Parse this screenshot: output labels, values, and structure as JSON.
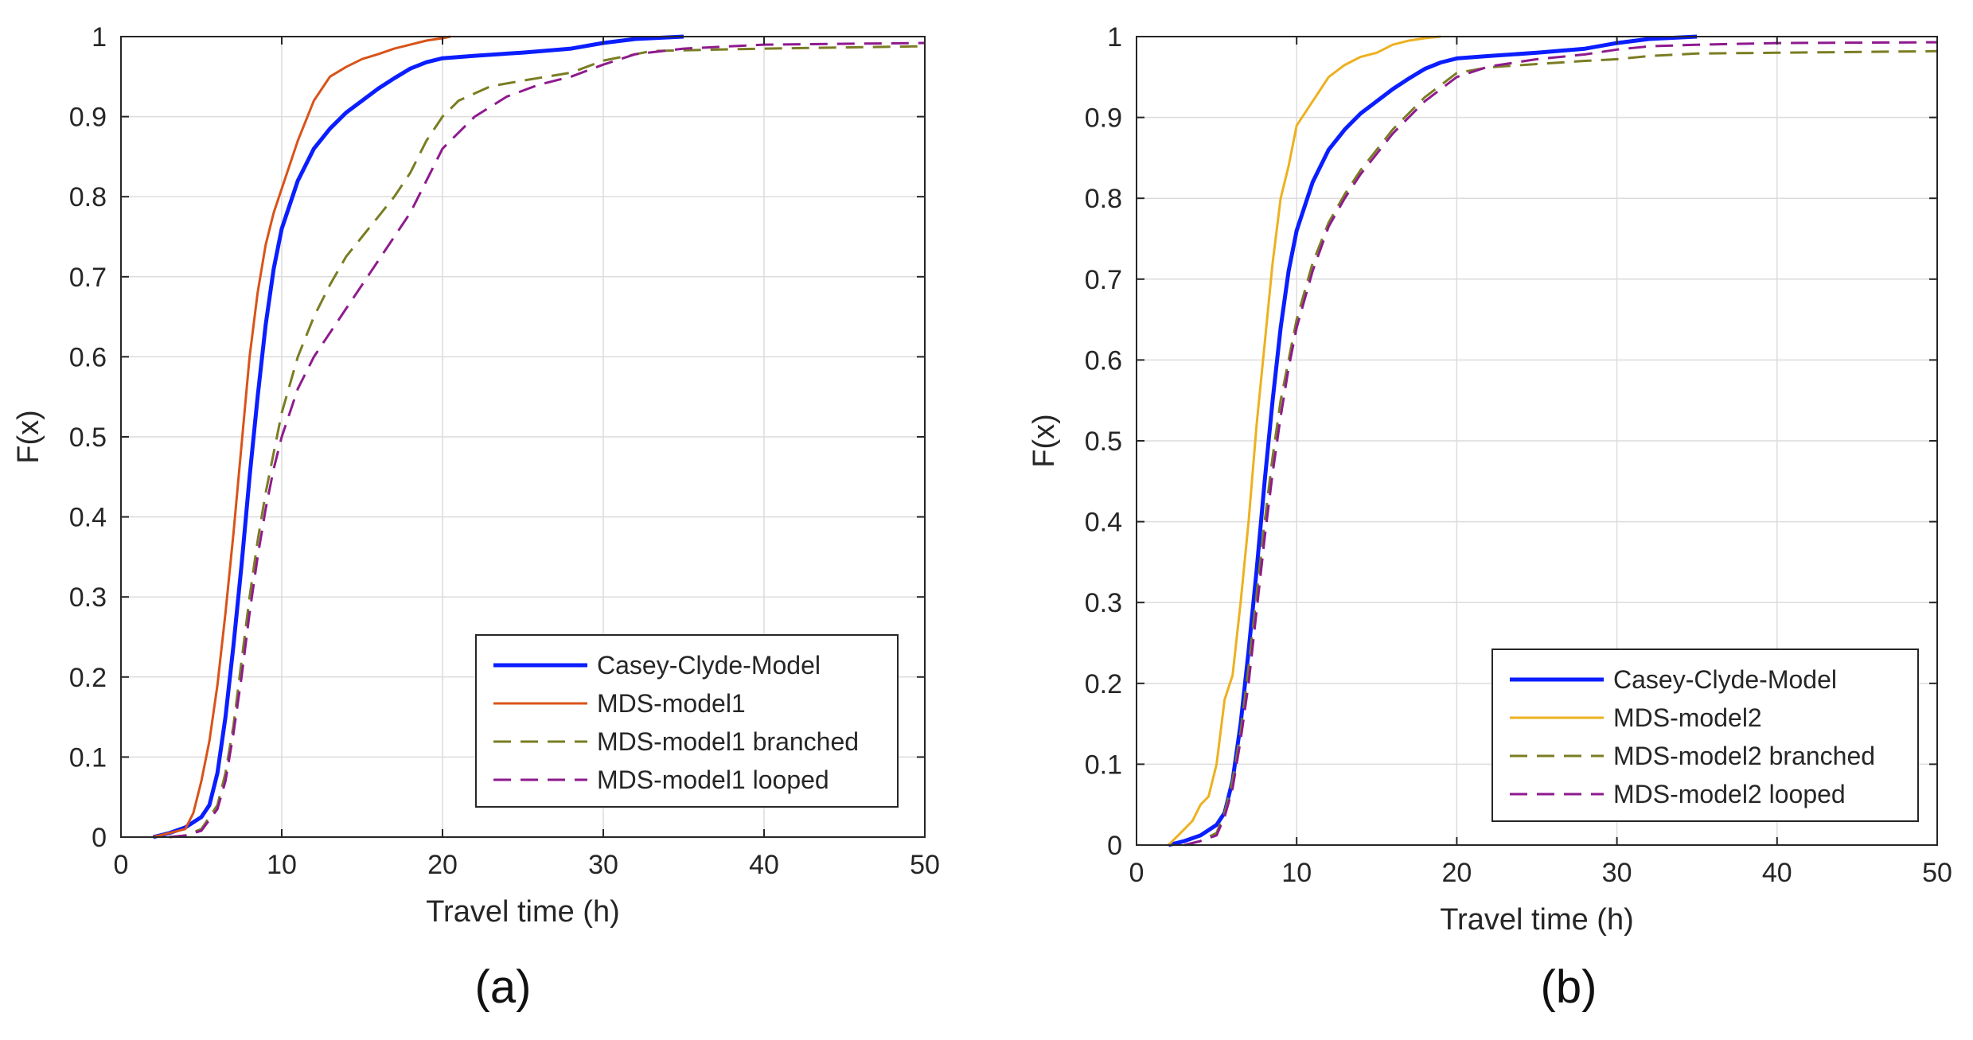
{
  "colors": {
    "ccm": "#0a1eff",
    "model1": "#d95319",
    "model2": "#edb120",
    "branched": "#77ac30",
    "branchedDark": "#7a7d22",
    "looped": "#8e1a8e",
    "grid": "#dcdcdc",
    "axis": "#262626"
  },
  "chart_data": [
    {
      "type": "line",
      "panel_label": "(a)",
      "title": "",
      "xlabel": "Travel time (h)",
      "ylabel": "F(x)",
      "xlim": [
        0,
        50
      ],
      "ylim": [
        0,
        1
      ],
      "xticks": [
        0,
        10,
        20,
        30,
        40,
        50
      ],
      "yticks": [
        0,
        0.1,
        0.2,
        0.3,
        0.4,
        0.5,
        0.6,
        0.7,
        0.8,
        0.9,
        1
      ],
      "grid": true,
      "legend_position": "bottom-right",
      "series": [
        {
          "name": "Casey-Clyde-Model",
          "style": "solid-thick",
          "color": "#0a1eff",
          "x": [
            2,
            3,
            4,
            5,
            5.5,
            6,
            6.5,
            7,
            7.5,
            8,
            8.5,
            9,
            9.5,
            10,
            11,
            12,
            13,
            14,
            15,
            16,
            17,
            18,
            19,
            20,
            22,
            25,
            28,
            30,
            32,
            35
          ],
          "y": [
            0,
            0.005,
            0.012,
            0.025,
            0.04,
            0.08,
            0.15,
            0.24,
            0.34,
            0.45,
            0.55,
            0.64,
            0.71,
            0.76,
            0.82,
            0.86,
            0.885,
            0.905,
            0.92,
            0.935,
            0.948,
            0.96,
            0.968,
            0.973,
            0.976,
            0.98,
            0.985,
            0.992,
            0.997,
            1.0
          ]
        },
        {
          "name": "MDS-model1",
          "style": "solid",
          "color": "#d95319",
          "x": [
            2,
            3,
            4,
            4.5,
            5,
            5.5,
            6,
            6.5,
            7,
            7.5,
            8,
            8.5,
            9,
            9.5,
            10,
            11,
            12,
            13,
            14,
            15,
            16,
            17,
            18,
            19,
            20,
            20.5
          ],
          "y": [
            0,
            0.005,
            0.01,
            0.03,
            0.07,
            0.12,
            0.19,
            0.28,
            0.38,
            0.49,
            0.6,
            0.68,
            0.74,
            0.78,
            0.81,
            0.87,
            0.92,
            0.95,
            0.962,
            0.972,
            0.978,
            0.985,
            0.99,
            0.995,
            0.998,
            1.0
          ]
        },
        {
          "name": "MDS-model1 branched",
          "style": "dashed",
          "color": "#7a7d22",
          "x": [
            3,
            4,
            5,
            6,
            6.5,
            7,
            7.5,
            8,
            8.5,
            9,
            9.5,
            10,
            11,
            12,
            13,
            14,
            15,
            16,
            17,
            18,
            19,
            20,
            21,
            23,
            25,
            28,
            30,
            33,
            40,
            50
          ],
          "y": [
            0,
            0.002,
            0.01,
            0.04,
            0.08,
            0.14,
            0.22,
            0.3,
            0.37,
            0.43,
            0.48,
            0.53,
            0.6,
            0.65,
            0.69,
            0.725,
            0.75,
            0.775,
            0.8,
            0.83,
            0.87,
            0.9,
            0.92,
            0.938,
            0.945,
            0.955,
            0.97,
            0.982,
            0.985,
            0.988
          ]
        },
        {
          "name": "MDS-model1 looped",
          "style": "dashed",
          "color": "#8e1a8e",
          "x": [
            3,
            4,
            5,
            6,
            6.5,
            7,
            7.5,
            8,
            8.5,
            9,
            9.5,
            10,
            11,
            12,
            13,
            14,
            15,
            16,
            17,
            18,
            19,
            20,
            22,
            24,
            26,
            28,
            30,
            32,
            35,
            40,
            50
          ],
          "y": [
            0,
            0.002,
            0.008,
            0.035,
            0.07,
            0.13,
            0.2,
            0.28,
            0.35,
            0.41,
            0.46,
            0.5,
            0.56,
            0.6,
            0.63,
            0.66,
            0.69,
            0.72,
            0.75,
            0.78,
            0.82,
            0.86,
            0.9,
            0.925,
            0.94,
            0.95,
            0.965,
            0.978,
            0.985,
            0.99,
            0.992
          ]
        }
      ]
    },
    {
      "type": "line",
      "panel_label": "(b)",
      "title": "",
      "xlabel": "Travel time (h)",
      "ylabel": "F(x)",
      "xlim": [
        0,
        50
      ],
      "ylim": [
        0,
        1
      ],
      "xticks": [
        0,
        10,
        20,
        30,
        40,
        50
      ],
      "yticks": [
        0,
        0.1,
        0.2,
        0.3,
        0.4,
        0.5,
        0.6,
        0.7,
        0.8,
        0.9,
        1
      ],
      "grid": true,
      "legend_position": "bottom-right",
      "series": [
        {
          "name": "Casey-Clyde-Model",
          "style": "solid-thick",
          "color": "#0a1eff",
          "x": [
            2,
            3,
            4,
            5,
            5.5,
            6,
            6.5,
            7,
            7.5,
            8,
            8.5,
            9,
            9.5,
            10,
            11,
            12,
            13,
            14,
            15,
            16,
            17,
            18,
            19,
            20,
            22,
            25,
            28,
            30,
            32,
            35
          ],
          "y": [
            0,
            0.005,
            0.012,
            0.025,
            0.04,
            0.08,
            0.15,
            0.24,
            0.34,
            0.45,
            0.55,
            0.64,
            0.71,
            0.76,
            0.82,
            0.86,
            0.885,
            0.905,
            0.92,
            0.935,
            0.948,
            0.96,
            0.968,
            0.973,
            0.976,
            0.98,
            0.985,
            0.992,
            0.997,
            1.0
          ]
        },
        {
          "name": "MDS-model2",
          "style": "solid",
          "color": "#edb120",
          "x": [
            2,
            3,
            3.5,
            4,
            4.5,
            5,
            5.5,
            6,
            6.5,
            7,
            7.5,
            8,
            8.5,
            9,
            9.5,
            10,
            11,
            12,
            13,
            14,
            15,
            16,
            17,
            18,
            19
          ],
          "y": [
            0,
            0.02,
            0.03,
            0.05,
            0.06,
            0.1,
            0.18,
            0.21,
            0.3,
            0.4,
            0.52,
            0.62,
            0.72,
            0.8,
            0.84,
            0.89,
            0.92,
            0.95,
            0.965,
            0.975,
            0.98,
            0.99,
            0.995,
            0.998,
            1.0
          ]
        },
        {
          "name": "MDS-model2 branched",
          "style": "dashed",
          "color": "#7a7d22",
          "x": [
            3,
            4,
            5,
            5.5,
            6,
            6.5,
            7,
            7.5,
            8,
            8.5,
            9,
            9.5,
            10,
            11,
            12,
            13,
            14,
            15,
            16,
            17,
            18,
            19,
            20,
            22,
            25,
            28,
            30,
            32,
            35,
            40,
            50
          ],
          "y": [
            0,
            0.005,
            0.015,
            0.04,
            0.08,
            0.14,
            0.22,
            0.31,
            0.4,
            0.48,
            0.55,
            0.6,
            0.65,
            0.72,
            0.77,
            0.805,
            0.835,
            0.86,
            0.885,
            0.905,
            0.925,
            0.94,
            0.955,
            0.962,
            0.966,
            0.97,
            0.972,
            0.976,
            0.979,
            0.98,
            0.982
          ]
        },
        {
          "name": "MDS-model2 looped",
          "style": "dashed",
          "color": "#8e1a8e",
          "x": [
            3,
            4,
            5,
            5.5,
            6,
            6.5,
            7,
            7.5,
            8,
            8.5,
            9,
            9.5,
            10,
            11,
            12,
            13,
            14,
            15,
            16,
            17,
            18,
            19,
            20,
            22,
            25,
            28,
            30,
            32,
            35,
            40,
            50
          ],
          "y": [
            0,
            0.005,
            0.012,
            0.035,
            0.07,
            0.13,
            0.2,
            0.29,
            0.38,
            0.46,
            0.53,
            0.59,
            0.64,
            0.71,
            0.765,
            0.8,
            0.83,
            0.855,
            0.88,
            0.9,
            0.92,
            0.935,
            0.95,
            0.963,
            0.972,
            0.978,
            0.984,
            0.988,
            0.99,
            0.992,
            0.993
          ]
        }
      ]
    }
  ]
}
